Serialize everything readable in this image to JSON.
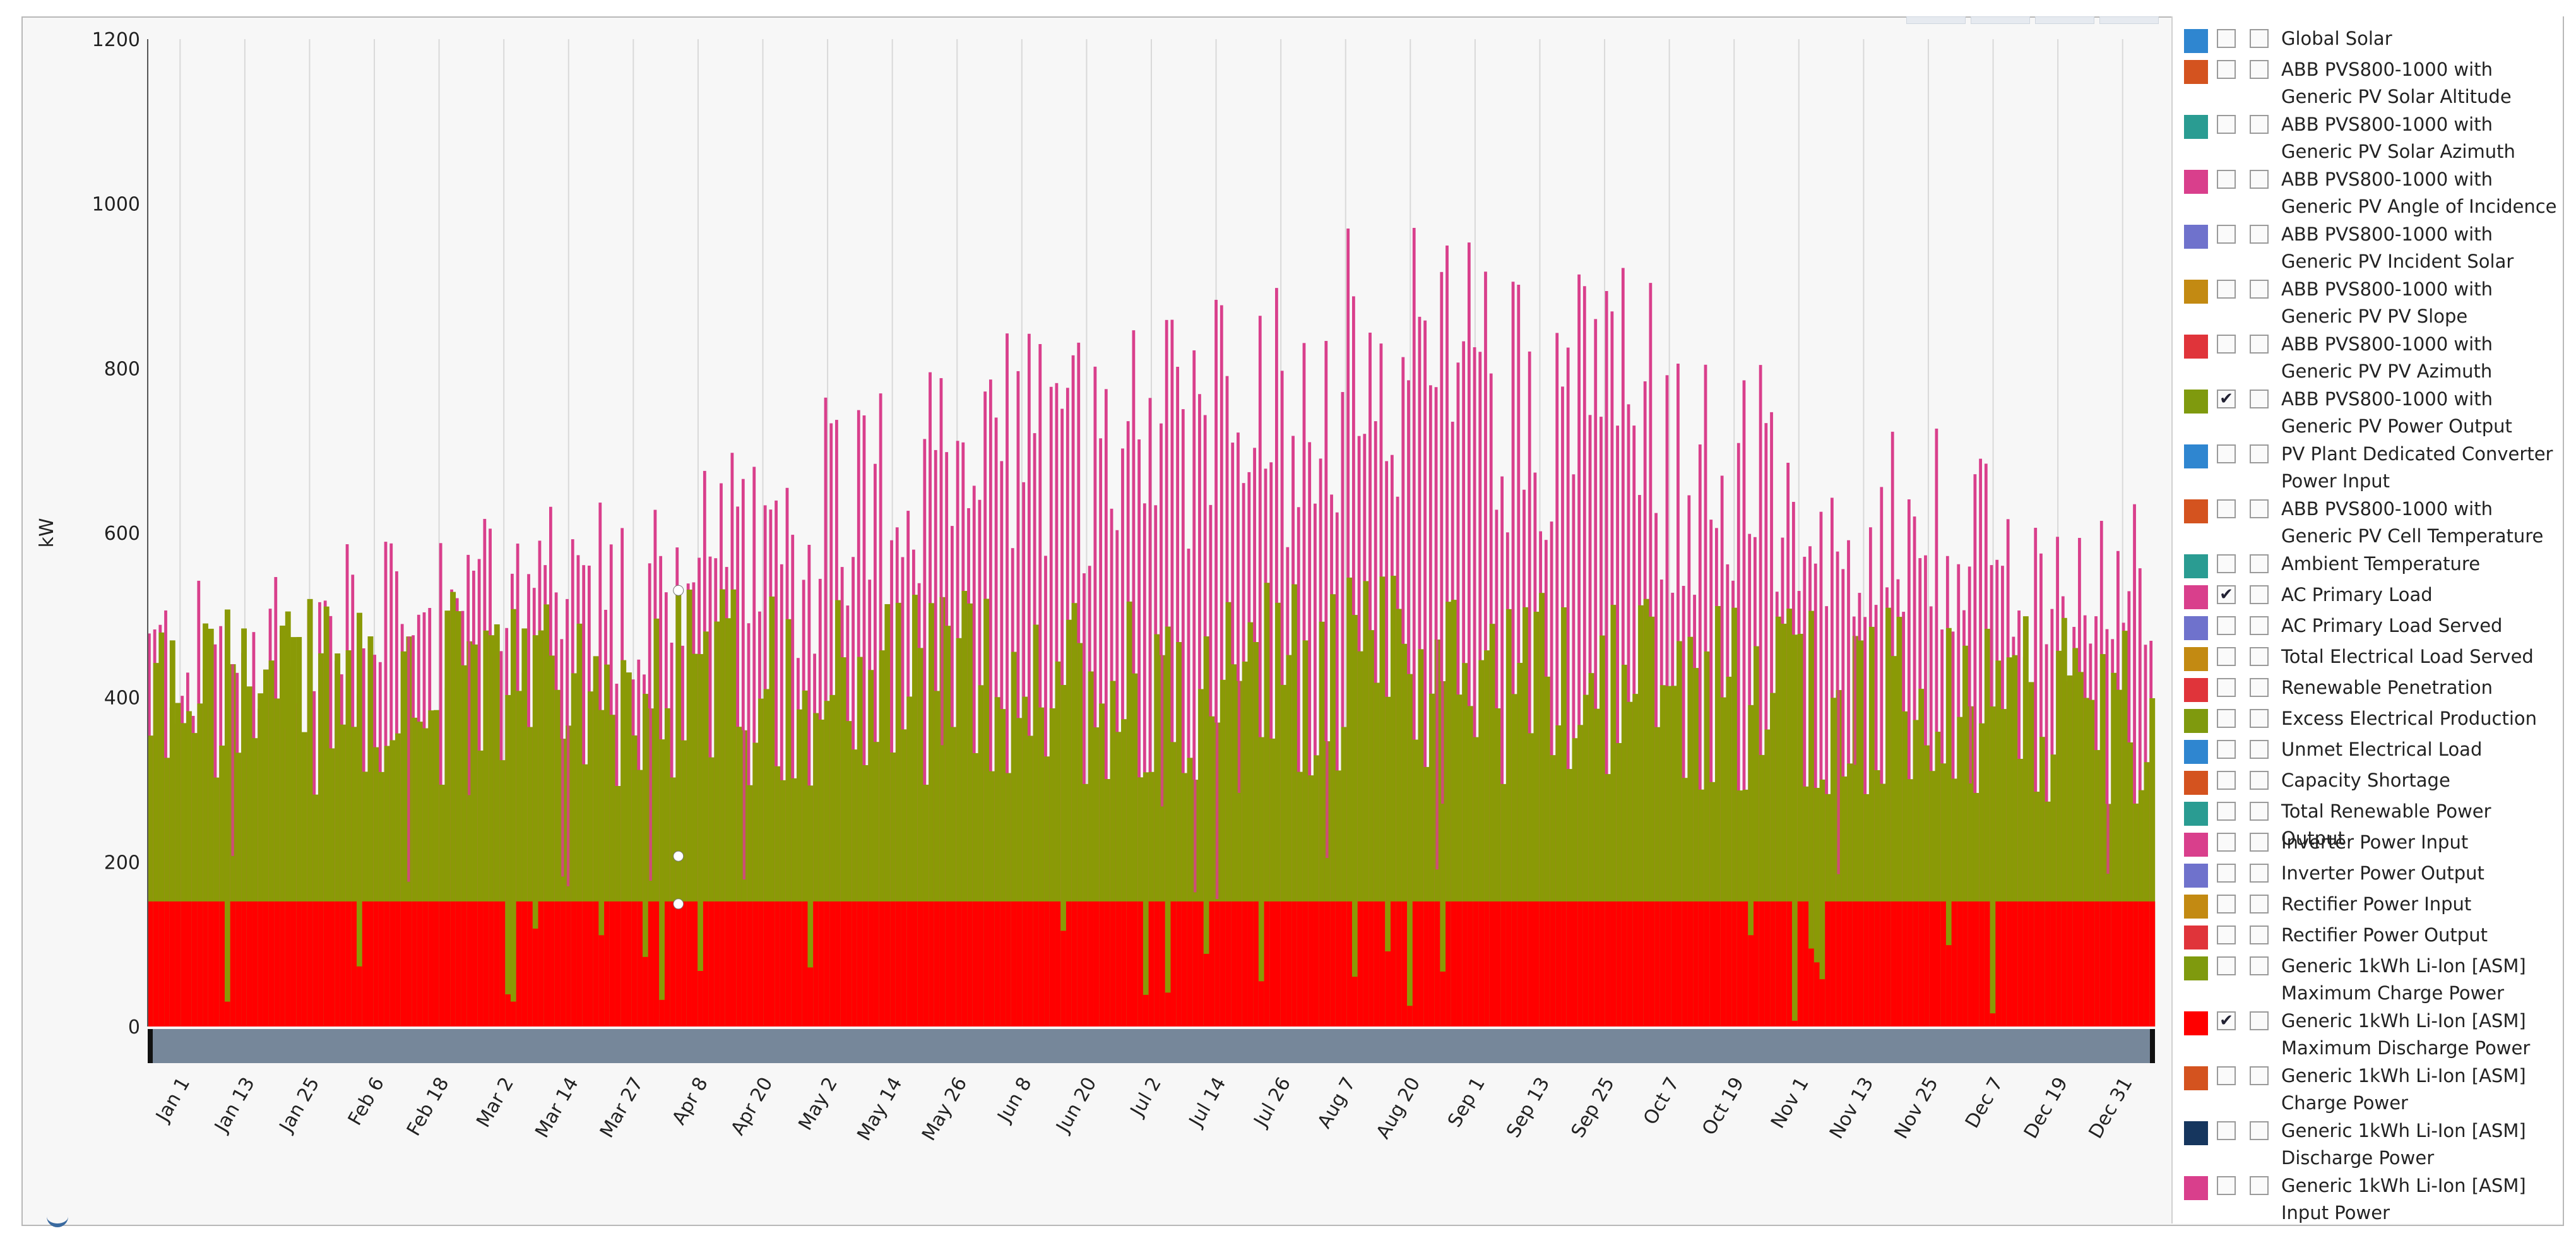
{
  "chart_data": {
    "type": "bar",
    "y_axis_label": "kW",
    "ylim": [
      0,
      1200
    ],
    "y_ticks": [
      0,
      200,
      400,
      600,
      800,
      1000,
      1200
    ],
    "x_tick_labels": [
      "Jan 1",
      "Jan 13",
      "Jan 25",
      "Feb 6",
      "Feb 18",
      "Mar 2",
      "Mar 14",
      "Mar 27",
      "Apr 8",
      "Apr 20",
      "May 2",
      "May 14",
      "May 26",
      "Jun 8",
      "Jun 20",
      "Jul 2",
      "Jul 14",
      "Jul 26",
      "Aug 7",
      "Aug 20",
      "Sep 1",
      "Sep 13",
      "Sep 25",
      "Oct 7",
      "Oct 19",
      "Nov 1",
      "Nov 13",
      "Nov 25",
      "Dec 7",
      "Dec 19",
      "Dec 31"
    ],
    "grid": "vertical",
    "series": [
      {
        "name": "AC Primary Load",
        "color": "#d93f8c",
        "typical_peak_kw": [
          480,
          520,
          560,
          620,
          700,
          760,
          800,
          860,
          820,
          720,
          640,
          560
        ],
        "max_kw": 1065
      },
      {
        "name": "ABB PVS800-1000 with Generic PV Power Output",
        "color": "#8a9a06",
        "typical_peak_kw": [
          510,
          520,
          520,
          530,
          530,
          535,
          545,
          545,
          535,
          520,
          500,
          490
        ]
      },
      {
        "name": "Generic 1kWh Li-Ion [ASM] Maximum Discharge Power",
        "color": "#ff0000",
        "value_kw": 152
      }
    ],
    "markers_kw": [
      530,
      207,
      149
    ]
  },
  "legend": {
    "items": [
      {
        "color": "#2f86d0",
        "shown": false,
        "axis": false,
        "label": "Global Solar"
      },
      {
        "color": "#d4531f",
        "shown": false,
        "axis": false,
        "label": "ABB PVS800-1000 with Generic PV Solar Altitude"
      },
      {
        "color": "#2a9c92",
        "shown": false,
        "axis": false,
        "label": "ABB PVS800-1000 with Generic PV Solar Azimuth"
      },
      {
        "color": "#d93f8c",
        "shown": false,
        "axis": false,
        "label": "ABB PVS800-1000 with Generic PV Angle of Incidence"
      },
      {
        "color": "#6f72cc",
        "shown": false,
        "axis": false,
        "label": "ABB PVS800-1000 with Generic PV Incident Solar"
      },
      {
        "color": "#c38a12",
        "shown": false,
        "axis": false,
        "label": "ABB PVS800-1000 with Generic PV PV Slope"
      },
      {
        "color": "#e0343a",
        "shown": false,
        "axis": false,
        "label": "ABB PVS800-1000 with Generic PV PV Azimuth"
      },
      {
        "color": "#7f9a0e",
        "shown": true,
        "axis": false,
        "label": "ABB PVS800-1000 with Generic PV Power Output"
      },
      {
        "color": "#2f86d0",
        "shown": false,
        "axis": false,
        "label": "PV Plant Dedicated Converter Power Input"
      },
      {
        "color": "#d4531f",
        "shown": false,
        "axis": false,
        "label": "ABB PVS800-1000 with Generic PV Cell Temperature"
      },
      {
        "color": "#2a9c92",
        "shown": false,
        "axis": false,
        "label": "Ambient Temperature"
      },
      {
        "color": "#d93f8c",
        "shown": true,
        "axis": false,
        "label": "AC Primary Load"
      },
      {
        "color": "#6f72cc",
        "shown": false,
        "axis": false,
        "label": "AC Primary Load Served"
      },
      {
        "color": "#c38a12",
        "shown": false,
        "axis": false,
        "label": "Total Electrical Load Served"
      },
      {
        "color": "#e0343a",
        "shown": false,
        "axis": false,
        "label": "Renewable Penetration"
      },
      {
        "color": "#7f9a0e",
        "shown": false,
        "axis": false,
        "label": "Excess Electrical Production"
      },
      {
        "color": "#2f86d0",
        "shown": false,
        "axis": false,
        "label": "Unmet Electrical Load"
      },
      {
        "color": "#d4531f",
        "shown": false,
        "axis": false,
        "label": "Capacity Shortage"
      },
      {
        "color": "#2a9c92",
        "shown": false,
        "axis": false,
        "label": "Total Renewable Power Output"
      },
      {
        "color": "#d93f8c",
        "shown": false,
        "axis": false,
        "label": "Inverter Power Input"
      },
      {
        "color": "#6f72cc",
        "shown": false,
        "axis": false,
        "label": "Inverter Power Output"
      },
      {
        "color": "#c38a12",
        "shown": false,
        "axis": false,
        "label": "Rectifier Power Input"
      },
      {
        "color": "#e0343a",
        "shown": false,
        "axis": false,
        "label": "Rectifier Power Output"
      },
      {
        "color": "#7f9a0e",
        "shown": false,
        "axis": false,
        "label": "Generic 1kWh Li-Ion [ASM] Maximum Charge Power"
      },
      {
        "color": "#ff0000",
        "shown": true,
        "axis": false,
        "label": "Generic 1kWh Li-Ion [ASM] Maximum Discharge Power"
      },
      {
        "color": "#d4531f",
        "shown": false,
        "axis": false,
        "label": "Generic 1kWh Li-Ion [ASM] Charge Power"
      },
      {
        "color": "#16365e",
        "shown": false,
        "axis": false,
        "label": "Generic 1kWh Li-Ion [ASM] Discharge Power"
      },
      {
        "color": "#d93f8c",
        "shown": false,
        "axis": false,
        "label": "Generic 1kWh Li-Ion [ASM] Input Power"
      }
    ]
  }
}
